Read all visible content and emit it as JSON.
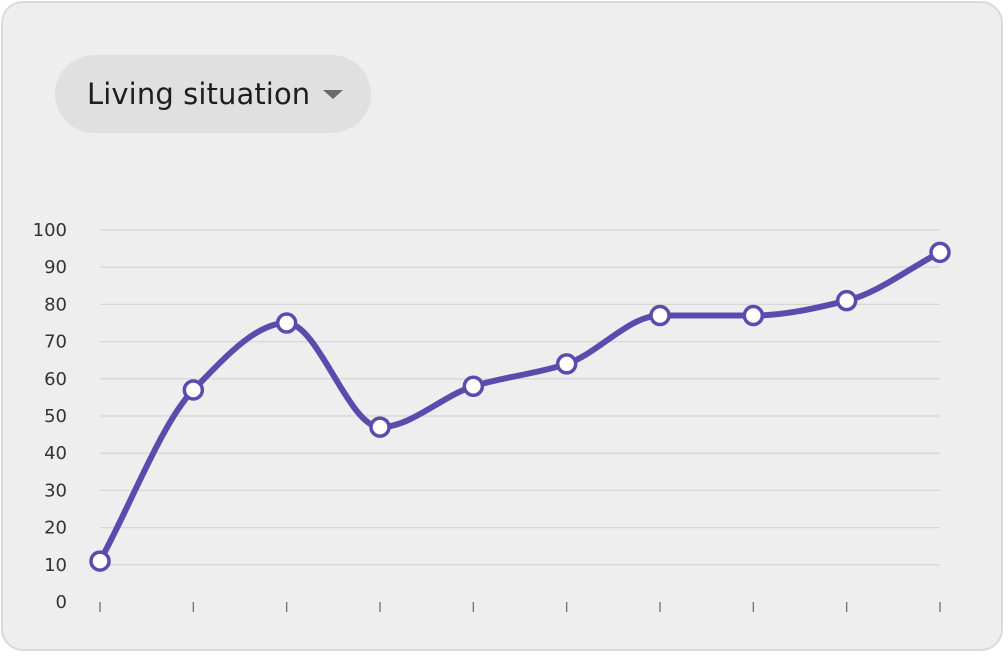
{
  "dropdown": {
    "label": "Living situation",
    "icon": "caret-down-icon"
  },
  "colors": {
    "line": "#5d4aad",
    "grid": "#d6d6d6",
    "card_background": "#eeeeee",
    "dropdown_background": "#e0e0e0"
  },
  "chart_data": {
    "type": "line",
    "title": "",
    "xlabel": "",
    "ylabel": "",
    "ylim": [
      0,
      100
    ],
    "yticks": [
      "0",
      "10",
      "20",
      "30",
      "40",
      "50",
      "60",
      "70",
      "80",
      "90",
      "100"
    ],
    "x": [
      1,
      2,
      3,
      4,
      5,
      6,
      7,
      8,
      9,
      10
    ],
    "series": [
      {
        "values": [
          11,
          57,
          75,
          47,
          58,
          64,
          77,
          77,
          81,
          94
        ]
      }
    ],
    "grid": true,
    "smooth": true,
    "markers": "hollow-circle"
  }
}
